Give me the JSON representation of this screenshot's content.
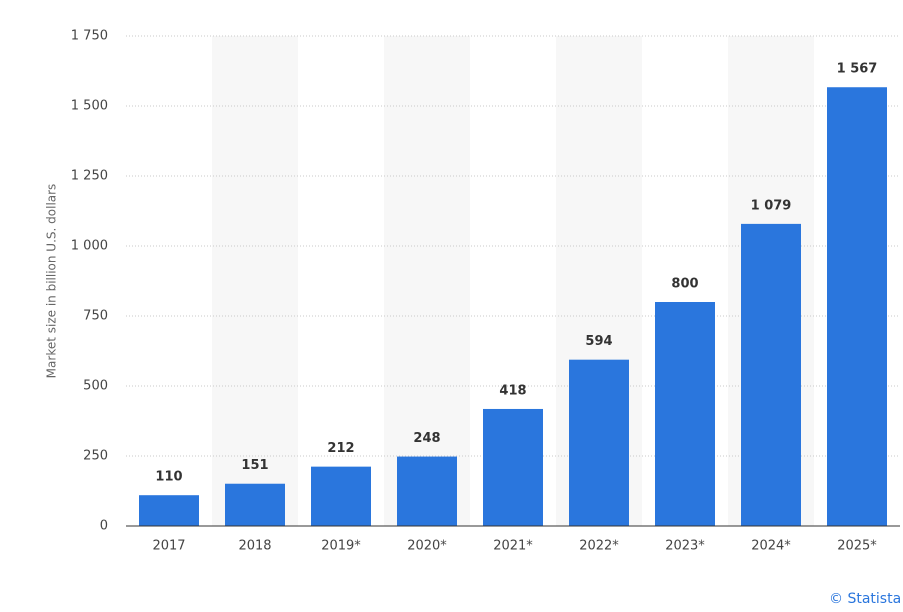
{
  "chart_data": {
    "type": "bar",
    "y_label": "Market size in billion U.S. dollars",
    "categories": [
      "2017",
      "2018",
      "2019*",
      "2020*",
      "2021*",
      "2022*",
      "2023*",
      "2024*",
      "2025*"
    ],
    "values": [
      110,
      151,
      212,
      248,
      418,
      594,
      800,
      1079,
      1567
    ],
    "value_labels": [
      "110",
      "151",
      "212",
      "248",
      "418",
      "594",
      "800",
      "1 079",
      "1 567"
    ],
    "color": "#2a76dd",
    "ylim": [
      0,
      1750
    ],
    "yticks": [
      0,
      250,
      500,
      750,
      {
        "value": 1000,
        "label": "1 000"
      },
      {
        "value": 1250,
        "label": "1 250"
      },
      {
        "value": 1500,
        "label": "1 500"
      },
      {
        "value": 1750,
        "label": "1 750"
      }
    ],
    "grid": true,
    "credit": "© Statista"
  }
}
